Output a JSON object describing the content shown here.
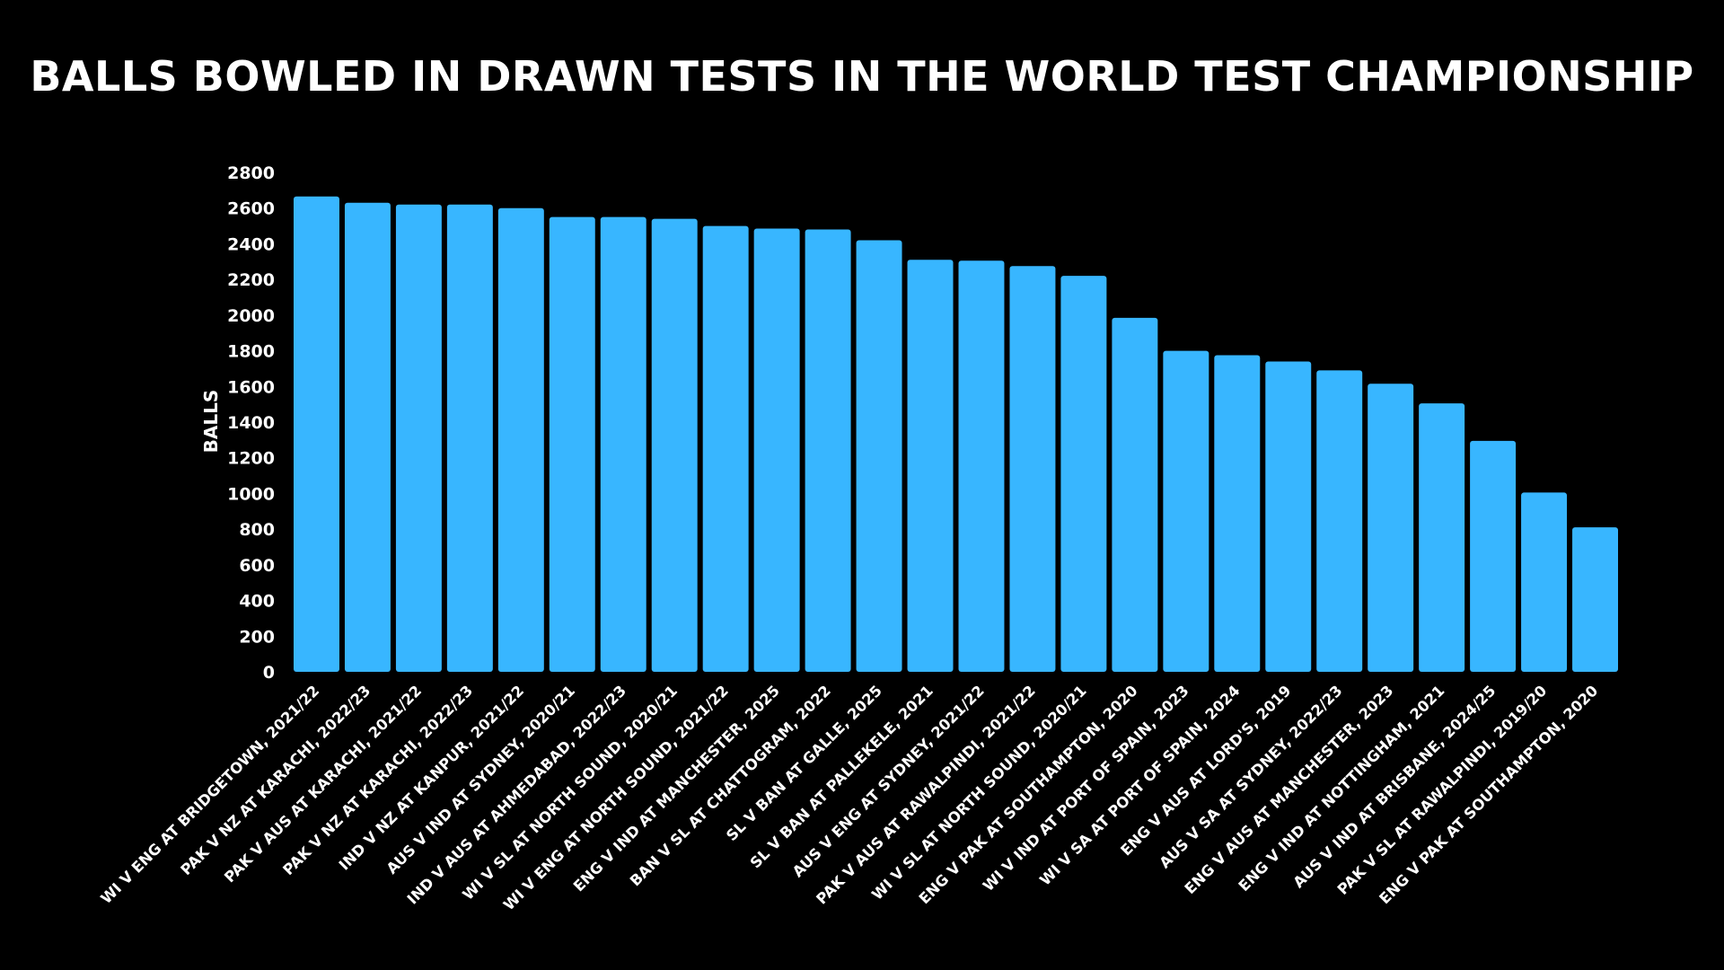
{
  "chart_data": {
    "type": "bar",
    "title": "BALLS BOWLED IN DRAWN TESTS IN THE WORLD TEST CHAMPIONSHIP",
    "xlabel": "",
    "ylabel": "BALLS",
    "ylim": [
      0,
      2800
    ],
    "yticks": [
      0,
      200,
      400,
      600,
      800,
      1000,
      1200,
      1400,
      1600,
      1800,
      2000,
      2200,
      2400,
      2600,
      2800
    ],
    "grid": false,
    "bar_color": "#38B6FF",
    "background": "#000000",
    "categories": [
      "WI V ENG AT BRIDGETOWN, 2021/22",
      "PAK V NZ AT KARACHI, 2022/23",
      "PAK V AUS AT KARACHI, 2021/22",
      "PAK V NZ AT KARACHI, 2022/23",
      "IND V NZ AT KANPUR, 2021/22",
      "AUS V IND AT SYDNEY, 2020/21",
      "IND V AUS AT AHMEDABAD, 2022/23",
      "WI V SL AT NORTH SOUND, 2020/21",
      "WI V ENG AT NORTH SOUND, 2021/22",
      "ENG V IND AT MANCHESTER, 2025",
      "BAN V SL AT CHATTOGRAM, 2022",
      "SL V BAN AT GALLE, 2025",
      "SL V BAN AT PALLEKELE, 2021",
      "AUS V ENG AT SYDNEY, 2021/22",
      "PAK V AUS AT RAWALPINDI, 2021/22",
      "WI V SL AT NORTH SOUND, 2020/21",
      "ENG V PAK AT SOUTHAMPTON, 2020",
      "WI V IND AT PORT OF SPAIN, 2023",
      "WI V SA AT PORT OF SPAIN, 2024",
      "ENG V AUS AT LORD'S, 2019",
      "AUS V SA AT SYDNEY, 2022/23",
      "ENG V AUS AT MANCHESTER, 2023",
      "ENG V IND AT NOTTINGHAM, 2021",
      "AUS V IND AT BRISBANE, 2024/25",
      "PAK V SL AT RAWALPINDI, 2019/20",
      "ENG V PAK AT SOUTHAMPTON, 2020"
    ],
    "values": [
      2665,
      2630,
      2620,
      2620,
      2600,
      2550,
      2550,
      2540,
      2500,
      2485,
      2480,
      2420,
      2310,
      2305,
      2275,
      2220,
      1985,
      1800,
      1775,
      1740,
      1690,
      1615,
      1505,
      1295,
      1005,
      810
    ]
  }
}
